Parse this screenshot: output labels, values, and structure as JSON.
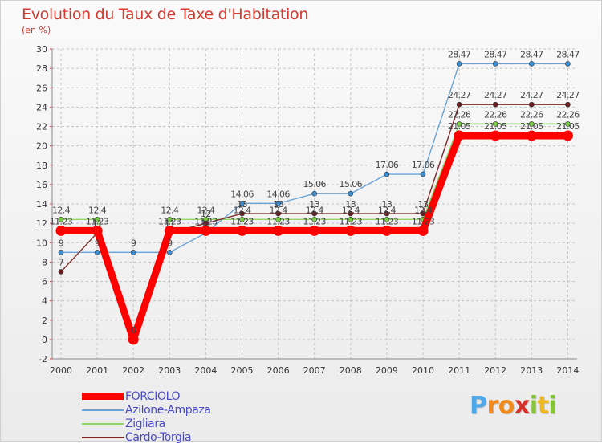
{
  "chart_data": {
    "type": "line",
    "title": "Evolution du Taux de Taxe d'Habitation",
    "subtitle": "(en %)",
    "x": [
      "2000",
      "2001",
      "2002",
      "2003",
      "2004",
      "2005",
      "2006",
      "2007",
      "2008",
      "2009",
      "2010",
      "2011",
      "2012",
      "2013",
      "2014"
    ],
    "y_ticks": [
      -2,
      0,
      2,
      4,
      6,
      8,
      10,
      12,
      14,
      16,
      18,
      20,
      22,
      24,
      26,
      28,
      30
    ],
    "ylim": [
      -2,
      30
    ],
    "grid": true,
    "legend_position": "bottom-left",
    "series": [
      {
        "name": "FORCIOLO",
        "color": "#ff0000",
        "marker_color": "#ff0000",
        "values": [
          11.23,
          11.23,
          0,
          11.23,
          11.23,
          11.23,
          11.23,
          11.23,
          11.23,
          11.23,
          11.23,
          21.05,
          21.05,
          21.05,
          21.05
        ],
        "labels": [
          "11.23",
          "11.23",
          "0",
          "11.23",
          "11.23",
          "11.23",
          "11.23",
          "11.23",
          "11.23",
          "11.23",
          "11.23",
          "21.05",
          "21.05",
          "21.05",
          "21.05"
        ]
      },
      {
        "name": "Azilone-Ampaza",
        "color": "#6aa3d5",
        "marker_color": "#3b8fd4",
        "values": [
          9,
          9,
          9,
          9,
          11,
          14.06,
          14.06,
          15.06,
          15.06,
          17.06,
          17.06,
          28.47,
          28.47,
          28.47,
          28.47
        ],
        "labels": [
          "9",
          "9",
          "9",
          "9",
          "11",
          "14.06",
          "14.06",
          "15.06",
          "15.06",
          "17.06",
          "17.06",
          "28.47",
          "28.47",
          "28.47",
          "28.47"
        ]
      },
      {
        "name": "Zigliara",
        "color": "#8ed66a",
        "marker_color": "#77cc44",
        "values": [
          12.4,
          12.4,
          0,
          12.4,
          12.4,
          12.4,
          12.4,
          12.4,
          12.4,
          12.4,
          12.4,
          22.26,
          22.26,
          22.26,
          22.26
        ],
        "labels": [
          "12.4",
          "12.4",
          "0",
          "12.4",
          "12.4",
          "12.4",
          "12.4",
          "12.4",
          "12.4",
          "12.4",
          "12.4",
          "22.26",
          "22.26",
          "22.26",
          "22.26"
        ]
      },
      {
        "name": "Cardo-Torgia",
        "color": "#7b2a2a",
        "marker_color": "#6b1e1e",
        "values": [
          7,
          11,
          0,
          11,
          12,
          13,
          13,
          13,
          13,
          13,
          13,
          24.27,
          24.27,
          24.27,
          24.27
        ],
        "labels": [
          "7",
          "11",
          "0",
          "11",
          "12",
          "13",
          "13",
          "13",
          "13",
          "13",
          "13",
          "24.27",
          "24.27",
          "24.27",
          "24.27"
        ]
      }
    ]
  },
  "brand": {
    "letters": [
      "P",
      "r",
      "o",
      "x",
      "i",
      "t",
      "i"
    ],
    "colors": [
      "#4fa8e8",
      "#f08a1c",
      "#f08a1c",
      "#d9302a",
      "#88c43a",
      "#f0b81c",
      "#88c43a"
    ]
  }
}
